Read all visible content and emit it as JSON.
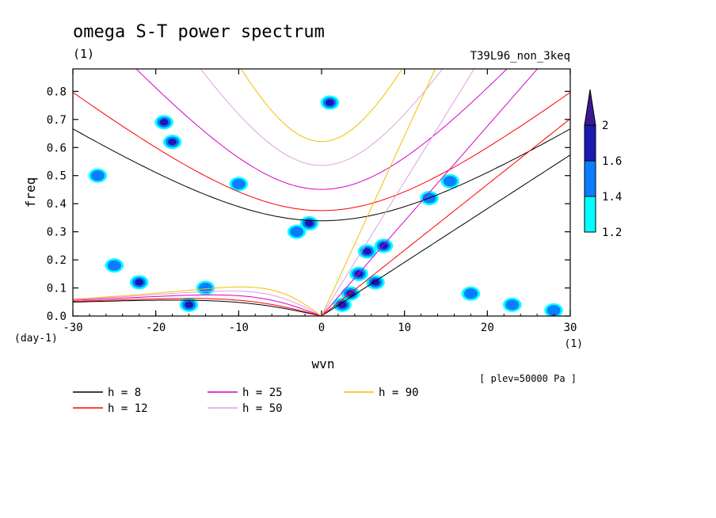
{
  "chart_data": {
    "type": "heatmap",
    "title": "omega S-T power spectrum",
    "subtitle": "(1)",
    "run_label": "T39L96_non_3keq",
    "xlabel": "wvn",
    "ylabel": "freq",
    "x_unit": "(1)",
    "y_unit": "(day-1)",
    "plev_note": "[ plev=50000 Pa ]",
    "xlim": [
      -30,
      30
    ],
    "ylim": [
      0,
      0.88
    ],
    "x_ticks": [
      -30,
      -20,
      -10,
      0,
      10,
      20,
      30
    ],
    "x_tick_labels": [
      "-30",
      "-20",
      "-10",
      "0",
      "10",
      "20",
      "30"
    ],
    "y_ticks": [
      0.0,
      0.1,
      0.2,
      0.3,
      0.4,
      0.5,
      0.6,
      0.7,
      0.8
    ],
    "y_tick_labels": [
      "0.0",
      "0.1",
      "0.2",
      "0.3",
      "0.4",
      "0.5",
      "0.6",
      "0.7",
      "0.8"
    ],
    "colorbar": {
      "levels": [
        1.2,
        1.4,
        1.6,
        2
      ],
      "labels": [
        "1.2",
        "1.4",
        "1.6",
        "2"
      ],
      "colors": [
        "#00ffff",
        "#0a7cff",
        "#1a1ab0",
        "#3c1890"
      ]
    },
    "dispersion_curves": [
      {
        "name": "h =  8",
        "h": 8,
        "color": "#000000"
      },
      {
        "name": "h = 12",
        "h": 12,
        "color": "#ff0000"
      },
      {
        "name": "h = 25",
        "h": 25,
        "color": "#d400c8"
      },
      {
        "name": "h = 50",
        "h": 50,
        "color": "#e0a0e0"
      },
      {
        "name": "h = 90",
        "h": 90,
        "color": "#f0c000"
      }
    ],
    "power_blobs": [
      {
        "x": 4.5,
        "y": 0.15,
        "level": 3
      },
      {
        "x": 3.5,
        "y": 0.08,
        "level": 3
      },
      {
        "x": 5.5,
        "y": 0.23,
        "level": 2
      },
      {
        "x": 7.5,
        "y": 0.25,
        "level": 2
      },
      {
        "x": 2.5,
        "y": 0.04,
        "level": 3
      },
      {
        "x": 6.5,
        "y": 0.12,
        "level": 2
      },
      {
        "x": -1.5,
        "y": 0.33,
        "level": 2
      },
      {
        "x": -16,
        "y": 0.04,
        "level": 2
      },
      {
        "x": -22,
        "y": 0.12,
        "level": 2
      },
      {
        "x": -18,
        "y": 0.62,
        "level": 2
      },
      {
        "x": -19,
        "y": 0.69,
        "level": 2
      },
      {
        "x": 1,
        "y": 0.76,
        "level": 2
      },
      {
        "x": 13,
        "y": 0.42,
        "level": 1
      },
      {
        "x": 15.5,
        "y": 0.48,
        "level": 1
      },
      {
        "x": -10,
        "y": 0.47,
        "level": 1
      },
      {
        "x": -3,
        "y": 0.3,
        "level": 1
      },
      {
        "x": -25,
        "y": 0.18,
        "level": 1
      },
      {
        "x": -14,
        "y": 0.1,
        "level": 1
      },
      {
        "x": 18,
        "y": 0.08,
        "level": 1
      },
      {
        "x": 23,
        "y": 0.04,
        "level": 1
      },
      {
        "x": 28,
        "y": 0.02,
        "level": 1
      },
      {
        "x": -27,
        "y": 0.5,
        "level": 1
      }
    ]
  }
}
